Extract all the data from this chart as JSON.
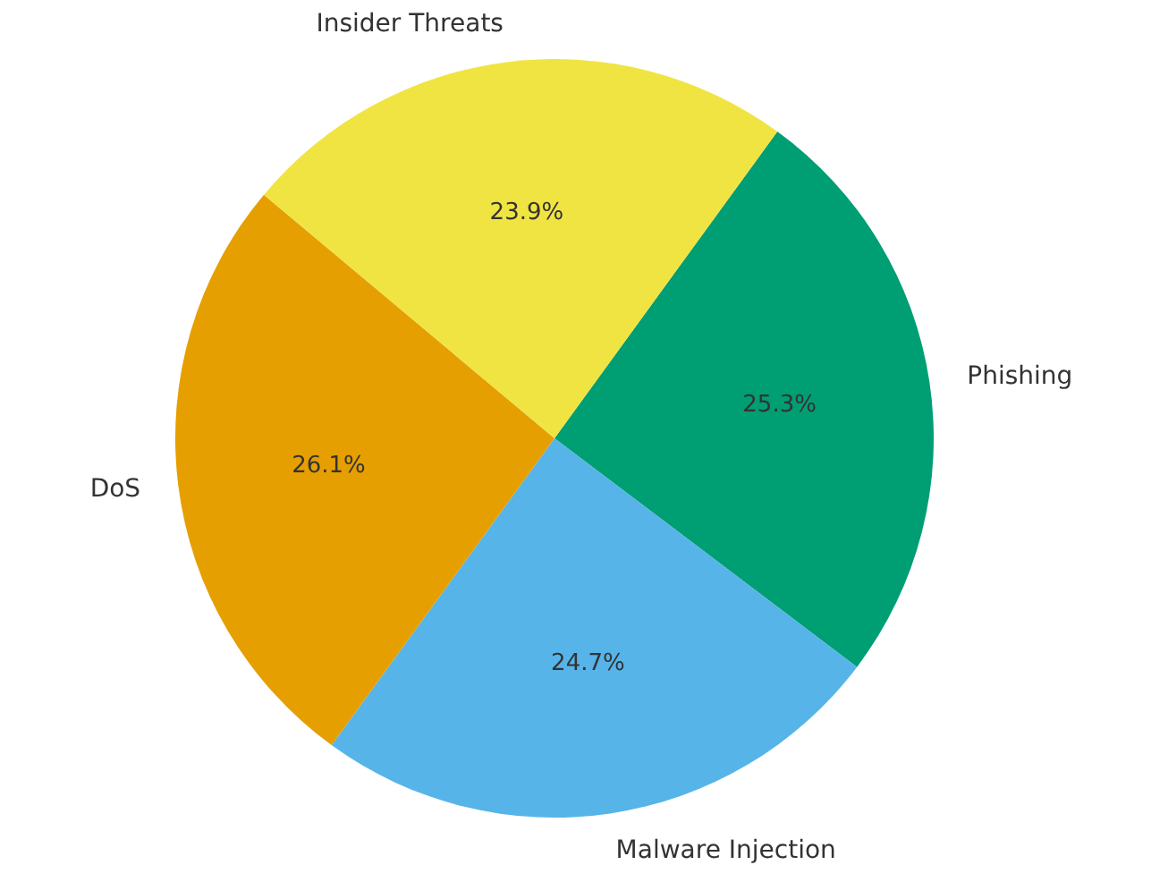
{
  "chart_data": {
    "type": "pie",
    "categories": [
      "Phishing",
      "Malware Injection",
      "DoS",
      "Insider Threats"
    ],
    "values": [
      25.3,
      24.7,
      26.1,
      23.9
    ],
    "colors": [
      "#009e73",
      "#56b4e9",
      "#e69f00",
      "#f0e442"
    ],
    "value_labels": [
      "25.3%",
      "24.7%",
      "26.1%",
      "23.9%"
    ]
  }
}
